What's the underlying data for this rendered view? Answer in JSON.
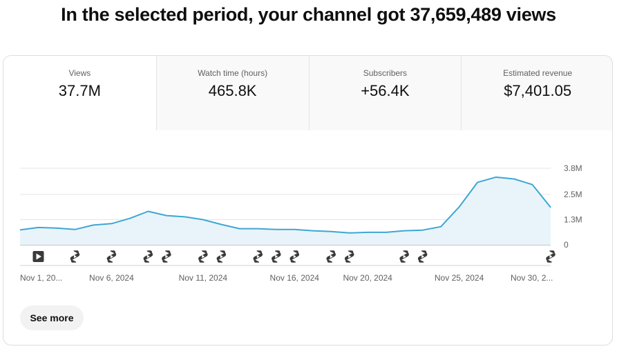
{
  "headline": "In the selected period, your channel got 37,659,489 views",
  "tabs": [
    {
      "label": "Views",
      "value": "37.7M",
      "active": true
    },
    {
      "label": "Watch time (hours)",
      "value": "465.8K",
      "active": false
    },
    {
      "label": "Subscribers",
      "value": "+56.4K",
      "active": false
    },
    {
      "label": "Estimated revenue",
      "value": "$7,401.05",
      "active": false
    }
  ],
  "chart_data": {
    "type": "area",
    "title": "",
    "xlabel": "",
    "ylabel": "",
    "ylim": [
      0,
      3800000
    ],
    "y_ticks": [
      {
        "value": 0,
        "label": "0"
      },
      {
        "value": 1250000,
        "label": "1.3M"
      },
      {
        "value": 2500000,
        "label": "2.5M"
      },
      {
        "value": 3800000,
        "label": "3.8M"
      }
    ],
    "x_tick_labels": [
      "Nov 1, 20...",
      "Nov 6, 2024",
      "Nov 11, 2024",
      "Nov 16, 2024",
      "Nov 20, 2024",
      "Nov 25, 2024",
      "Nov 30, 2..."
    ],
    "x_tick_indices": [
      0,
      5,
      10,
      15,
      19,
      24,
      29
    ],
    "x": [
      "Nov 1",
      "Nov 2",
      "Nov 3",
      "Nov 4",
      "Nov 5",
      "Nov 6",
      "Nov 7",
      "Nov 8",
      "Nov 9",
      "Nov 10",
      "Nov 11",
      "Nov 12",
      "Nov 13",
      "Nov 14",
      "Nov 15",
      "Nov 16",
      "Nov 17",
      "Nov 18",
      "Nov 19",
      "Nov 20",
      "Nov 21",
      "Nov 22",
      "Nov 23",
      "Nov 24",
      "Nov 25",
      "Nov 26",
      "Nov 27",
      "Nov 28",
      "Nov 29",
      "Nov 30"
    ],
    "series": [
      {
        "values": [
          740000,
          860000,
          830000,
          760000,
          980000,
          1050000,
          1310000,
          1660000,
          1450000,
          1390000,
          1250000,
          1010000,
          800000,
          800000,
          760000,
          760000,
          700000,
          660000,
          590000,
          620000,
          620000,
          700000,
          730000,
          900000,
          1880000,
          3100000,
          3360000,
          3270000,
          2990000,
          1860000
        ],
        "color": "#3ea6d3"
      }
    ],
    "grid": true,
    "legend": "none",
    "markers": [
      {
        "index": 1,
        "kind": "video"
      },
      {
        "index": 3,
        "kind": "short"
      },
      {
        "index": 5,
        "kind": "short"
      },
      {
        "index": 7,
        "kind": "short"
      },
      {
        "index": 8,
        "kind": "short"
      },
      {
        "index": 10,
        "kind": "short"
      },
      {
        "index": 11,
        "kind": "short"
      },
      {
        "index": 13,
        "kind": "short"
      },
      {
        "index": 14,
        "kind": "short"
      },
      {
        "index": 15,
        "kind": "short"
      },
      {
        "index": 17,
        "kind": "short"
      },
      {
        "index": 18,
        "kind": "short"
      },
      {
        "index": 21,
        "kind": "short"
      },
      {
        "index": 22,
        "kind": "short"
      },
      {
        "index": 29,
        "kind": "short"
      }
    ]
  },
  "see_more": "See more"
}
